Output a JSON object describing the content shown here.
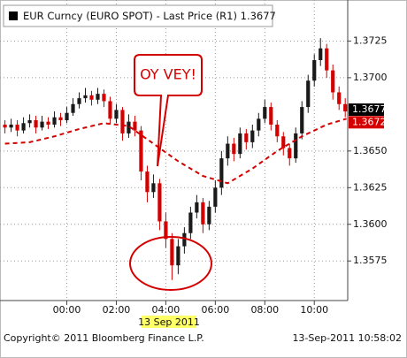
{
  "chart_data": {
    "type": "candlestick",
    "title": "EUR Curncy (EURO SPOT) - Last Price (R1) 1.3677",
    "x": [
      -2.5,
      -2.25,
      -2,
      -1.75,
      -1.5,
      -1.25,
      -1,
      -0.75,
      -0.5,
      -0.25,
      0,
      0.25,
      0.5,
      0.75,
      1,
      1.25,
      1.5,
      1.75,
      2,
      2.25,
      2.5,
      2.75,
      3,
      3.25,
      3.5,
      3.75,
      4,
      4.25,
      4.5,
      4.75,
      5,
      5.25,
      5.5,
      5.75,
      6,
      6.25,
      6.5,
      6.75,
      7,
      7.25,
      7.5,
      7.75,
      8,
      8.25,
      8.5,
      8.75,
      9,
      9.25,
      9.5,
      9.75,
      10,
      10.25,
      10.5,
      10.75,
      11,
      11.25
    ],
    "open": [
      1.3668,
      1.3666,
      1.3668,
      1.3664,
      1.3669,
      1.3671,
      1.3666,
      1.367,
      1.3668,
      1.3673,
      1.3671,
      1.3676,
      1.3682,
      1.3686,
      1.3688,
      1.3685,
      1.3689,
      1.3684,
      1.3672,
      1.3678,
      1.3662,
      1.367,
      1.3664,
      1.3636,
      1.3622,
      1.3628,
      1.3602,
      1.359,
      1.3572,
      1.3585,
      1.3594,
      1.3608,
      1.3615,
      1.36,
      1.3612,
      1.3625,
      1.3645,
      1.3655,
      1.3648,
      1.3662,
      1.3656,
      1.3664,
      1.3672,
      1.368,
      1.3668,
      1.366,
      1.3652,
      1.3645,
      1.3662,
      1.368,
      1.3698,
      1.3712,
      1.372,
      1.3705,
      1.369,
      1.3682
    ],
    "high": [
      1.3671,
      1.3672,
      1.3671,
      1.3673,
      1.3675,
      1.3674,
      1.3674,
      1.3673,
      1.3677,
      1.3676,
      1.368,
      1.3686,
      1.369,
      1.3693,
      1.3691,
      1.3693,
      1.3692,
      1.3687,
      1.3682,
      1.368,
      1.3675,
      1.3674,
      1.3667,
      1.364,
      1.3634,
      1.3631,
      1.3608,
      1.3594,
      1.359,
      1.3598,
      1.3612,
      1.362,
      1.3618,
      1.3616,
      1.363,
      1.365,
      1.366,
      1.3659,
      1.3666,
      1.3665,
      1.3668,
      1.3676,
      1.3685,
      1.3683,
      1.3671,
      1.3663,
      1.3655,
      1.3666,
      1.3684,
      1.3702,
      1.3716,
      1.3727,
      1.3723,
      1.3709,
      1.3694,
      1.3686
    ],
    "low": [
      1.3662,
      1.3663,
      1.366,
      1.3662,
      1.3666,
      1.3662,
      1.3664,
      1.3665,
      1.3666,
      1.3667,
      1.3669,
      1.3674,
      1.3679,
      1.3683,
      1.3681,
      1.3682,
      1.368,
      1.3668,
      1.3669,
      1.3657,
      1.3659,
      1.366,
      1.363,
      1.3615,
      1.3618,
      1.3596,
      1.3584,
      1.3562,
      1.3566,
      1.358,
      1.359,
      1.3604,
      1.3594,
      1.3596,
      1.3608,
      1.362,
      1.364,
      1.3643,
      1.3645,
      1.3651,
      1.3652,
      1.366,
      1.3669,
      1.3664,
      1.3656,
      1.3647,
      1.364,
      1.3642,
      1.3658,
      1.3676,
      1.3694,
      1.3708,
      1.37,
      1.3685,
      1.3678,
      1.3673
    ],
    "close": [
      1.3666,
      1.3668,
      1.3664,
      1.3669,
      1.3671,
      1.3666,
      1.367,
      1.3668,
      1.3673,
      1.3671,
      1.3676,
      1.3682,
      1.3686,
      1.3688,
      1.3685,
      1.3689,
      1.3684,
      1.3672,
      1.3678,
      1.3662,
      1.367,
      1.3664,
      1.3636,
      1.3622,
      1.3628,
      1.3602,
      1.359,
      1.3572,
      1.3585,
      1.3594,
      1.3608,
      1.3615,
      1.36,
      1.3612,
      1.3625,
      1.3645,
      1.3655,
      1.3648,
      1.3662,
      1.3656,
      1.3664,
      1.3672,
      1.368,
      1.3668,
      1.366,
      1.3652,
      1.3645,
      1.3662,
      1.368,
      1.3698,
      1.3712,
      1.372,
      1.3705,
      1.369,
      1.3682,
      1.3677
    ],
    "up_color": "#1a1a1a",
    "down_color": "#d40000",
    "moving_average": {
      "x": [
        -2.5,
        -1.5,
        -0.5,
        0.5,
        1.5,
        2.5,
        3.5,
        4.5,
        5.5,
        6.5,
        7.5,
        8.5,
        9.5,
        10.5,
        11.3
      ],
      "values": [
        1.3655,
        1.3656,
        1.366,
        1.3665,
        1.3669,
        1.3667,
        1.3655,
        1.3643,
        1.3633,
        1.3628,
        1.3638,
        1.365,
        1.366,
        1.3668,
        1.3672
      ],
      "color": "#d40000"
    },
    "xlim": [
      -2.7,
      11.35
    ],
    "xticks": [
      {
        "value": 0,
        "label": "00:00"
      },
      {
        "value": 2,
        "label": "02:00"
      },
      {
        "value": 4,
        "label": "04:00"
      },
      {
        "value": 6,
        "label": "06:00"
      },
      {
        "value": 8,
        "label": "08:00"
      },
      {
        "value": 10,
        "label": "10:00"
      }
    ],
    "ylim": [
      1.3548,
      1.3753
    ],
    "yticks": [
      1.3725,
      {
        "value": 1.37,
        "label": "1.3700"
      },
      {
        "value": 1.365,
        "label": "1.3650"
      },
      1.3625,
      {
        "value": 1.36,
        "label": "1.3600"
      },
      1.3575
    ],
    "grid": true,
    "last_prices": [
      {
        "value": 1.3677,
        "color": "#000000"
      },
      {
        "value": 1.3672,
        "color": "#d40000"
      }
    ],
    "date_label": "13 Sep 2011",
    "annotation": "OY VEY!",
    "copyright": "Copyright© 2011 Bloomberg Finance L.P.",
    "timestamp": "13-Sep-2011 10:58:02"
  }
}
